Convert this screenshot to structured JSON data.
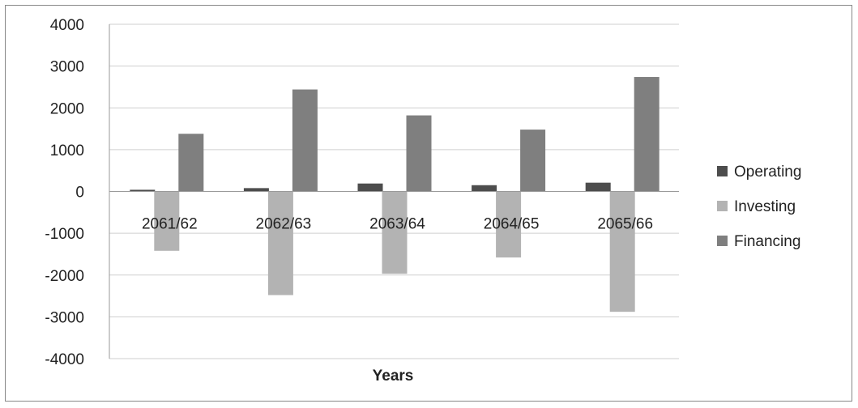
{
  "chart_data": {
    "type": "bar",
    "categories": [
      "2061/62",
      "2062/63",
      "2063/64",
      "2064/65",
      "2065/66"
    ],
    "series": [
      {
        "name": "Operating",
        "color": "#4d4d4d",
        "values": [
          40,
          80,
          190,
          150,
          210
        ]
      },
      {
        "name": "Investing",
        "color": "#b3b3b3",
        "values": [
          -1420,
          -2480,
          -1970,
          -1580,
          -2880
        ]
      },
      {
        "name": "Financing",
        "color": "#7f7f7f",
        "values": [
          1380,
          2440,
          1820,
          1480,
          2740
        ]
      }
    ],
    "title": "",
    "xlabel": "Years",
    "ylabel": "",
    "ylim": [
      -4000,
      4000
    ],
    "yticks": [
      4000,
      3000,
      2000,
      1000,
      0,
      -1000,
      -2000,
      -3000,
      -4000
    ],
    "grid": true,
    "legend": "right"
  }
}
